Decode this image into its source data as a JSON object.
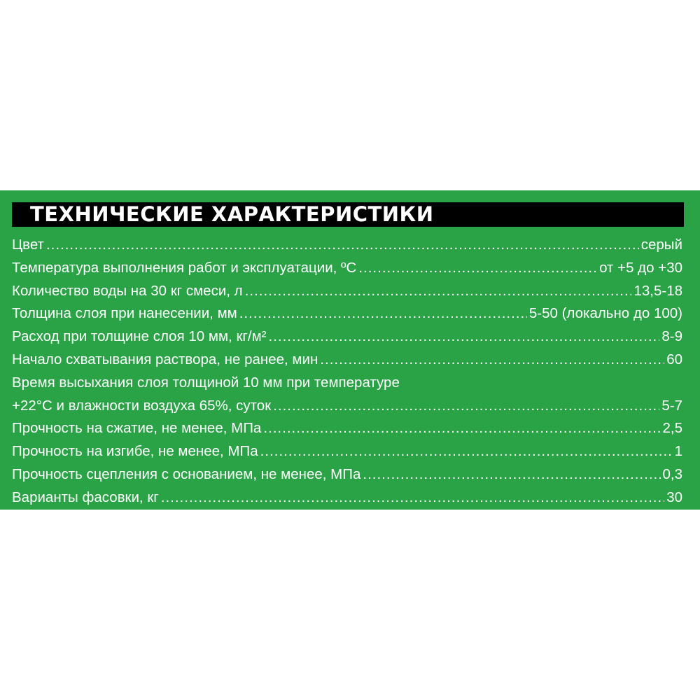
{
  "title": "ТЕХНИЧЕСКИЕ ХАРАКТЕРИСТИКИ",
  "colors": {
    "background": "#2aa246",
    "header_bar": "#000000",
    "text": "#ffffff"
  },
  "rows": [
    {
      "label": "Цвет",
      "value": "серый"
    },
    {
      "label": "Температура выполнения работ и эксплуатации, ºС",
      "value": "от +5 до +30"
    },
    {
      "label": "Количество воды на 30 кг смеси, л",
      "value": "13,5-18"
    },
    {
      "label": "Толщина слоя при нанесении,  мм",
      "value": "5-50 (локально до 100)"
    },
    {
      "label": "Расход при толщине слоя 10 мм, кг/м²",
      "value": "8-9"
    },
    {
      "label": "Начало схватывания раствора, не ранее, мин",
      "value": "60"
    },
    {
      "label": "Время высыхания слоя толщиной 10 мм при температуре",
      "value": ""
    },
    {
      "label": "+22°С и влажности воздуха 65%, суток",
      "value": "5-7"
    },
    {
      "label": "Прочность на сжатие, не менее, МПа",
      "value": "2,5"
    },
    {
      "label": "Прочность на изгибе, не менее, МПа",
      "value": "1"
    },
    {
      "label": "Прочность сцепления с основанием, не менее, МПа",
      "value": "0,3"
    },
    {
      "label": "Варианты фасовки, кг",
      "value": "30"
    }
  ]
}
